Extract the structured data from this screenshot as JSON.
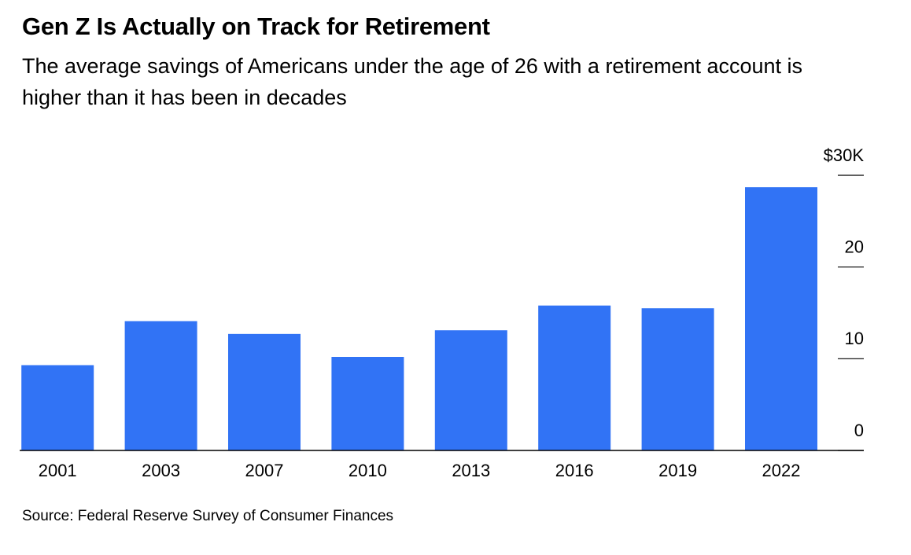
{
  "chart_data": {
    "type": "bar",
    "title": "Gen Z Is Actually on Track for Retirement",
    "subtitle": "The average savings of Americans under the age of 26 with a retirement account is higher than it has been in decades",
    "source": "Source: Federal Reserve Survey of Consumer Finances",
    "categories": [
      "2001",
      "2003",
      "2007",
      "2010",
      "2013",
      "2016",
      "2019",
      "2022"
    ],
    "values": [
      9.3,
      14.1,
      12.7,
      10.2,
      13.1,
      15.8,
      15.5,
      28.7
    ],
    "color": "#3173f5",
    "ylim": [
      0,
      30
    ],
    "yticks": [
      0,
      10,
      20,
      {
        "value": 30,
        "label": "$30K"
      }
    ]
  }
}
